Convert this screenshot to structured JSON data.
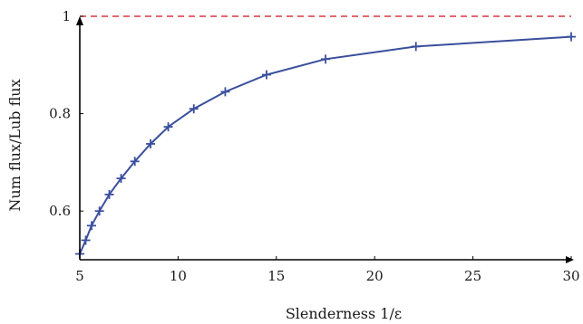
{
  "chart_data": {
    "type": "line",
    "title": "",
    "xlabel": "Slenderness 1/ε",
    "ylabel": "Num flux/Lub flux",
    "xlim": [
      5,
      30
    ],
    "ylim": [
      0.5,
      1.0
    ],
    "x_ticks": [
      5,
      10,
      15,
      20,
      25,
      30
    ],
    "y_ticks": [
      0.6,
      0.8,
      1
    ],
    "x_tick_labels": [
      "5",
      "10",
      "15",
      "20",
      "25",
      "30"
    ],
    "y_tick_labels": [
      "0.6",
      "0.8",
      "1"
    ],
    "grid": false,
    "legend": "none",
    "series": [
      {
        "color": "#3a4f9c",
        "marker": "plus",
        "x": [
          5.0,
          5.3,
          5.6,
          6.0,
          6.5,
          7.1,
          7.8,
          8.6,
          9.5,
          10.8,
          12.4,
          14.5,
          17.5,
          22.1,
          30.0
        ],
        "y": [
          0.512,
          0.54,
          0.57,
          0.6,
          0.634,
          0.667,
          0.702,
          0.738,
          0.773,
          0.81,
          0.845,
          0.88,
          0.912,
          0.938,
          0.958
        ]
      }
    ],
    "reference_lines": [
      {
        "y": 1.0,
        "color": "#d9363e",
        "style": "dashed"
      }
    ]
  }
}
